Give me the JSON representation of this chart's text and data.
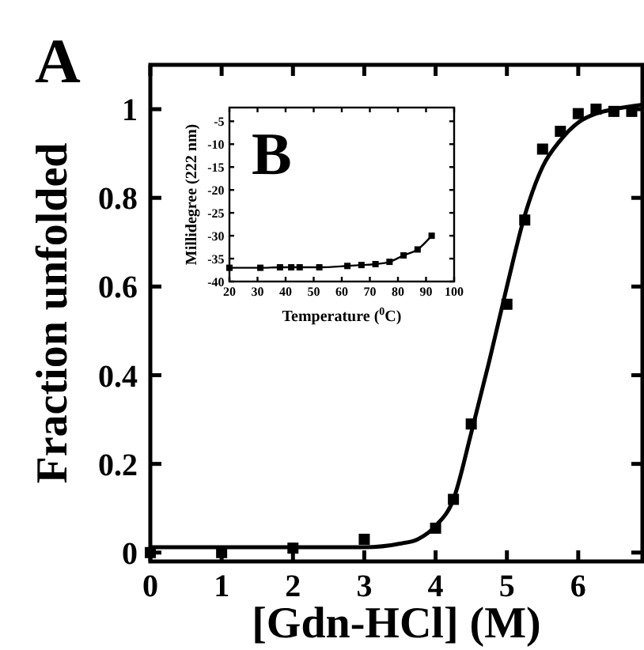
{
  "chart_data": [
    {
      "type": "scatter",
      "xlabel": "[Gdn-HCl] (M)",
      "ylabel": "Fraction unfolded",
      "annotations": [
        "A"
      ],
      "xlim": [
        0,
        6.9
      ],
      "ylim": [
        -0.02,
        1.1
      ],
      "xticks": [
        0,
        1,
        2,
        3,
        4,
        5,
        6
      ],
      "yticks": [
        0,
        0.2,
        0.4,
        0.6,
        0.8,
        1
      ],
      "marker": "square",
      "series": [
        {
          "color": "#000000",
          "x": [
            0,
            1,
            2,
            3,
            4,
            4.25,
            4.5,
            5,
            5.25,
            5.5,
            5.75,
            6,
            6.25,
            6.5,
            6.75
          ],
          "values": [
            0,
            0,
            0.01,
            0.03,
            0.055,
            0.12,
            0.29,
            0.56,
            0.75,
            0.91,
            0.95,
            0.99,
            1,
            0.995,
            0.995
          ]
        },
        {
          "type": "line",
          "color": "#000000",
          "marker": "none",
          "x": [
            0,
            1,
            2,
            3,
            3.5,
            3.75,
            4,
            4.25,
            4.5,
            4.75,
            5,
            5.25,
            5.5,
            5.75,
            6,
            6.25,
            6.5,
            6.9
          ],
          "values": [
            0.012,
            0.012,
            0.012,
            0.012,
            0.02,
            0.03,
            0.06,
            0.12,
            0.27,
            0.43,
            0.6,
            0.76,
            0.87,
            0.93,
            0.97,
            0.99,
            1,
            1.01
          ]
        }
      ]
    },
    {
      "type": "line",
      "xlabel": "Temperature ($^{0}$C)",
      "ylabel": "Millidegree (222 nm)",
      "annotations": [
        "B"
      ],
      "xlim": [
        20,
        100
      ],
      "ylim": [
        -40,
        -2
      ],
      "xticks": [
        20,
        30,
        40,
        50,
        60,
        70,
        80,
        90,
        100
      ],
      "yticks": [
        -5,
        -10,
        -15,
        -20,
        -25,
        -30,
        -35,
        -40
      ],
      "marker": "square",
      "series": [
        {
          "color": "#000000",
          "x": [
            20,
            31,
            38,
            42,
            45,
            52,
            62,
            67,
            72,
            77,
            82,
            87,
            92
          ],
          "values": [
            -37,
            -37,
            -36.9,
            -36.9,
            -36.9,
            -36.9,
            -36.6,
            -36.4,
            -36.2,
            -35.7,
            -34.3,
            -33,
            -30
          ]
        }
      ]
    }
  ]
}
